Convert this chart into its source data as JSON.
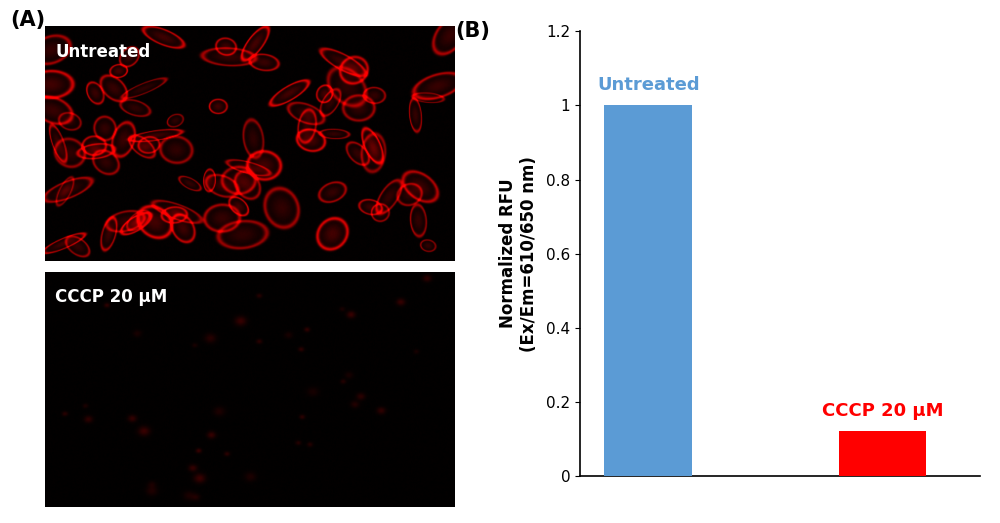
{
  "panel_A_label": "(A)",
  "panel_B_label": "(B)",
  "untreated_label": "Untreated",
  "cccp_label": "CCCP 20 μM",
  "bar_categories": [
    "Untreated",
    "CCCP 20 μM"
  ],
  "bar_values": [
    1.0,
    0.12
  ],
  "bar_colors": [
    "#5B9BD5",
    "#FF0000"
  ],
  "bar_label_colors": [
    "#5B9BD5",
    "#FF0000"
  ],
  "ylabel_line1": "Normalized RFU",
  "ylabel_line2": "(Ex/Em=610/650 nm)",
  "ylim": [
    0,
    1.2
  ],
  "yticks": [
    0,
    0.2,
    0.4,
    0.6,
    0.8,
    1.0,
    1.2
  ],
  "bar_width": 0.45,
  "bar_label_fontsize": 13,
  "ylabel_fontsize": 12,
  "ytick_fontsize": 11,
  "panel_label_fontsize": 15,
  "img_label_color": "#FFFFFF",
  "img_label_fontsize": 12,
  "background_color": "#FFFFFF"
}
